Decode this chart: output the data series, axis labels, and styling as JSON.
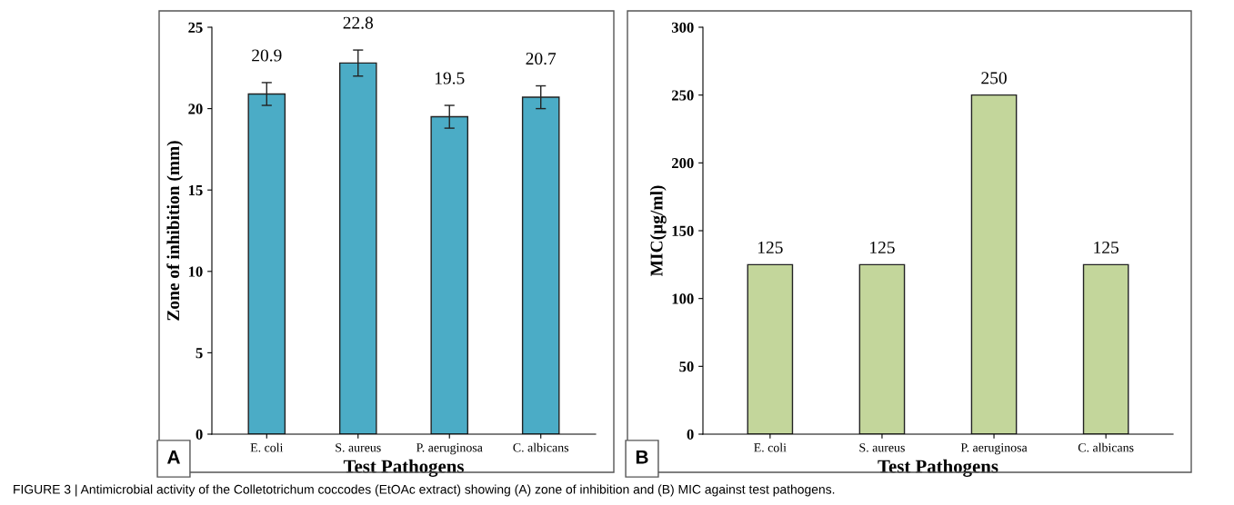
{
  "chart_data": [
    {
      "type": "bar",
      "categories": [
        "E. coli",
        "S. aureus",
        "P. aeruginosa",
        "C. albicans"
      ],
      "values": [
        20.9,
        22.8,
        19.5,
        20.7
      ],
      "errors": [
        0.7,
        0.8,
        0.7,
        0.7
      ],
      "color": "#4bacc6",
      "data_labels": true,
      "xlabel": "Test Pathogens",
      "ylabel": "Zone of inhibition (mm)",
      "ylim": [
        0,
        25
      ],
      "yticks": [
        0,
        5,
        10,
        15,
        20,
        25
      ],
      "annotations": [
        "A"
      ]
    },
    {
      "type": "bar",
      "categories": [
        "E. coli",
        "S. aureus",
        "P. aeruginosa",
        "C. albicans"
      ],
      "values": [
        125,
        125,
        250,
        125
      ],
      "color": "#c3d69b",
      "data_labels": true,
      "xlabel": "Test Pathogens",
      "ylabel": "MIC(µg/ml)",
      "ylim": [
        0,
        300
      ],
      "yticks": [
        0,
        50,
        100,
        150,
        200,
        250,
        300
      ],
      "annotations": [
        "B",
        "FIGURE 3 | Antimicrobial activity of the Colletotrichum coccodes (EtOAc extract) showing (A) zone of inhibition and (B) MIC against test pathogens."
      ]
    }
  ]
}
